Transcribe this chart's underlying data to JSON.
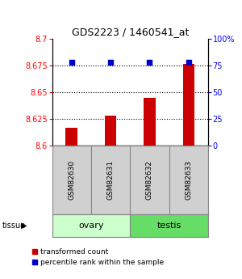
{
  "title": "GDS2223 / 1460541_at",
  "samples": [
    "GSM82630",
    "GSM82631",
    "GSM82632",
    "GSM82633"
  ],
  "red_values": [
    8.617,
    8.628,
    8.645,
    8.676
  ],
  "blue_values": [
    78,
    78,
    78,
    78
  ],
  "ylim_left": [
    8.6,
    8.7
  ],
  "ylim_right": [
    0,
    100
  ],
  "yticks_left": [
    8.6,
    8.625,
    8.65,
    8.675,
    8.7
  ],
  "yticks_right": [
    0,
    25,
    50,
    75,
    100
  ],
  "ytick_labels_left": [
    "8.6",
    "8.625",
    "8.65",
    "8.675",
    "8.7"
  ],
  "ytick_labels_right": [
    "0",
    "25",
    "50",
    "75",
    "100%"
  ],
  "bar_color": "#cc0000",
  "dot_color": "#0000cc",
  "bar_bottom": 8.6,
  "ovary_color": "#ccffcc",
  "testis_color": "#66dd66",
  "sample_box_color": "#d0d0d0",
  "legend_red": "transformed count",
  "legend_blue": "percentile rank within the sample",
  "bg_color": "#ffffff"
}
